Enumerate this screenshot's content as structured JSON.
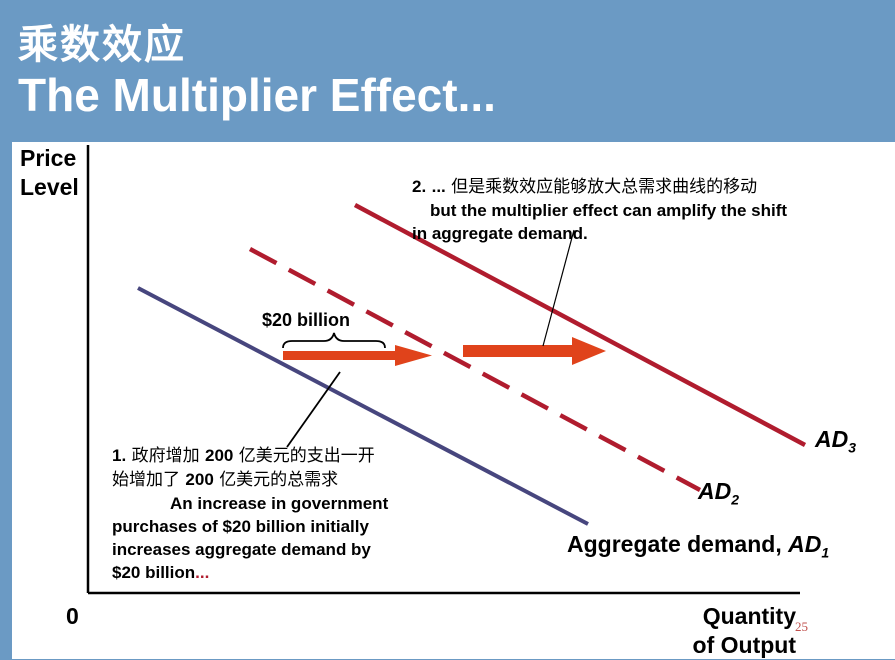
{
  "title": {
    "cn": "乘数效应",
    "en": "The Multiplier Effect..."
  },
  "axes": {
    "y_label_line1": "Price",
    "y_label_line2": "Level",
    "x_label_line1": "Quantity",
    "x_label_line2": "of Output",
    "origin": "0"
  },
  "curves": [
    {
      "id": "AD1",
      "label": "Aggregate demand, ",
      "symbol": "AD",
      "sub": "1",
      "color": "#47467e",
      "style": "solid"
    },
    {
      "id": "AD2",
      "label": "",
      "symbol": "AD",
      "sub": "2",
      "color": "#b01c2e",
      "style": "dashed"
    },
    {
      "id": "AD3",
      "label": "",
      "symbol": "AD",
      "sub": "3",
      "color": "#b01c2e",
      "style": "solid"
    }
  ],
  "shift_arrows": {
    "color": "#e0431b"
  },
  "brace_label": "$20 billion",
  "annotation_1": {
    "num": "1.",
    "cn_a": "政府增加",
    "cn_b": "200",
    "cn_c": "亿美元的支出一开",
    "cn_d": "始增加了",
    "cn_e": "200",
    "cn_f": "亿美元的总需求",
    "en_1": "An increase in government",
    "en_2": "purchases of $20 billion initially",
    "en_3": "increases aggregate demand by",
    "en_4": "$20 billion",
    "en_ellipsis": "..."
  },
  "annotation_2": {
    "num": "2.",
    "ellipsis": "...",
    "cn": "但是乘数效应能够放大总需求曲线的移动",
    "en_1": "but the multiplier effect can amplify the shift",
    "en_2": "in aggregate demand."
  },
  "slide_number": "25"
}
